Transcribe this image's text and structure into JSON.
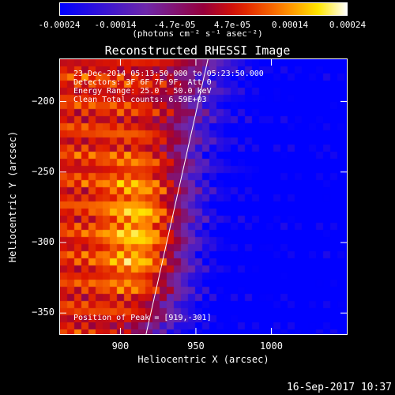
{
  "chart_data": {
    "type": "heatmap",
    "title": "Reconstructed RHESSI Image",
    "xlabel": "Heliocentric X (arcsec)",
    "ylabel": "Heliocentric Y (arcsec)",
    "xlim": [
      860,
      1050
    ],
    "ylim": [
      -365,
      -170
    ],
    "x_ticks": [
      900,
      950,
      1000
    ],
    "y_ticks": [
      -200,
      -250,
      -300,
      -350
    ],
    "colorbar": {
      "ticks": [
        "-0.00024",
        "-0.00014",
        "-4.7e-05",
        "4.7e-05",
        "0.00014",
        "0.00024"
      ],
      "tick_values": [
        -0.00024,
        -0.00014,
        -4.7e-05,
        4.7e-05,
        0.00014,
        0.00024
      ],
      "units": "(photons cm⁻² s⁻¹ asec⁻²)",
      "range": [
        -0.00024,
        0.00024
      ]
    },
    "annotations": [
      "23-Dec-2014 05:13:50.000 to 05:23:50.000",
      "Detectors: 3F 6F 7F 9F, Att 0",
      "Energy Range: 25.0 - 50.0 keV",
      "Clean    Total counts: 6.59E+03"
    ],
    "peak_label": "Position of Peak = [919,-301]",
    "peak": [
      919,
      -301
    ],
    "limb_line": [
      [
        958,
        -170
      ],
      [
        917,
        -365
      ]
    ]
  },
  "footer": {
    "timestamp": "16-Sep-2017 10:37"
  },
  "colors": {
    "background": "#000000",
    "text": "#ffffff"
  }
}
